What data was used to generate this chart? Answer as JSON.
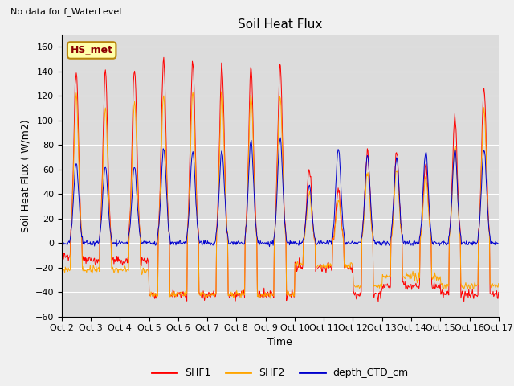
{
  "title": "Soil Heat Flux",
  "xlabel": "Time",
  "ylabel": "Soil Heat Flux ( W/m2)",
  "ylim": [
    -60,
    170
  ],
  "yticks": [
    -60,
    -40,
    -20,
    0,
    20,
    40,
    60,
    80,
    100,
    120,
    140,
    160
  ],
  "xtick_labels": [
    "Oct 2",
    "Oct 3",
    "Oct 4",
    "Oct 5",
    "Oct 6",
    "Oct 7",
    "Oct 8",
    "Oct 9",
    "Oct 10",
    "Oct 11",
    "Oct 12",
    "Oct 13",
    "Oct 14",
    "Oct 15",
    "Oct 16",
    "Oct 17"
  ],
  "annotation_text": "No data for f_WaterLevel",
  "box_label": "HS_met",
  "legend_entries": [
    "SHF1",
    "SHF2",
    "depth_CTD_cm"
  ],
  "legend_colors": [
    "#ff0000",
    "#ffa500",
    "#0000cd"
  ],
  "shf1_color": "#ff0000",
  "shf2_color": "#ffa500",
  "ctd_color": "#0000cd",
  "fig_facecolor": "#f0f0f0",
  "plot_bg_color": "#dcdcdc",
  "grid_color": "#ffffff",
  "title_fontsize": 11,
  "label_fontsize": 9,
  "tick_fontsize": 8,
  "legend_fontsize": 9
}
